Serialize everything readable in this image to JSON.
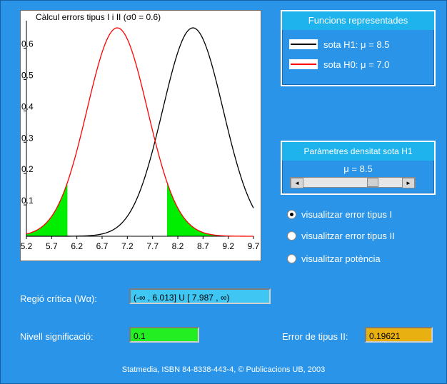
{
  "chart_data": {
    "type": "line",
    "title": "Càlcul errors tipus I i II (σ0 = 0.6)",
    "x_ticks": [
      "5.2",
      "5.7",
      "6.2",
      "6.7",
      "7.2",
      "7.7",
      "8.2",
      "8.7",
      "9.2",
      "9.7"
    ],
    "y_ticks": [
      "0.1",
      "0.2",
      "0.3",
      "0.4",
      "0.5",
      "0.6"
    ],
    "xlim": [
      5.2,
      9.7
    ],
    "ylim": [
      0,
      0.665
    ],
    "sigma": 0.6,
    "series": [
      {
        "name": "sota H1: μ = 8.5",
        "mu": 8.5,
        "color": "#000000"
      },
      {
        "name": "sota H0: μ = 7.0",
        "mu": 7.0,
        "color": "#ff0000"
      }
    ],
    "shaded_regions": [
      {
        "from": 5.2,
        "to": 6.013,
        "color": "#00ee00"
      },
      {
        "from": 7.987,
        "to": 9.7,
        "color": "#00ee00"
      }
    ]
  },
  "legend_panel": {
    "title": "Funcions representades",
    "items": [
      {
        "label": "sota H1: μ = 8.5",
        "color": "#000000"
      },
      {
        "label": "sota H0: μ = 7.0",
        "color": "#ff0000"
      }
    ]
  },
  "params_panel": {
    "title": "Paràmetres densitat sota H1",
    "mu_label": "μ = 8.5",
    "slider_value": 8.5,
    "slider_range": [
      5.2,
      9.7
    ],
    "left_arrow": "◄",
    "right_arrow": "►"
  },
  "options": [
    {
      "label": "visualitzar error tipus I",
      "checked": true
    },
    {
      "label": "visualitzar error tipus II",
      "checked": false
    },
    {
      "label": "visualitzar potència",
      "checked": false
    }
  ],
  "critical_region": {
    "label": "Regió crítica (Wα):",
    "value": "(-∞ , 6.013] U [ 7.987 , ∞)",
    "bg": "#3fc6f3"
  },
  "significance": {
    "label": "Nivell significació:",
    "value": "0.1",
    "bg": "#22ee22"
  },
  "type2_error": {
    "label": "Error de tipus II:",
    "value": "0.19621",
    "bg": "#e8b010"
  },
  "footer": "Statmedia, ISBN 84-8338-443-4, © Publicacions UB, 2003"
}
